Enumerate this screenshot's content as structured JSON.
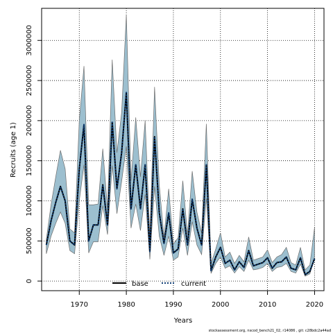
{
  "chart_data": {
    "type": "line",
    "xlabel": "Years",
    "ylabel": "Recruits (age 1)",
    "xlim": [
      1962,
      2022
    ],
    "ylim": [
      -120000,
      3400000
    ],
    "xticks": [
      1970,
      1980,
      1990,
      2000,
      2010,
      2020
    ],
    "yticks": [
      0,
      500000,
      1000000,
      1500000,
      2000000,
      2500000,
      3000000
    ],
    "grid": true,
    "legend_position": "bottom-center",
    "band_color": "#9cbfcf",
    "band_edge_color": "#6c6c6c",
    "x": [
      1963,
      1964,
      1965,
      1966,
      1967,
      1968,
      1969,
      1970,
      1971,
      1972,
      1973,
      1974,
      1975,
      1976,
      1977,
      1978,
      1979,
      1980,
      1981,
      1982,
      1983,
      1984,
      1985,
      1986,
      1987,
      1988,
      1989,
      1990,
      1991,
      1992,
      1993,
      1994,
      1995,
      1996,
      1997,
      1998,
      1999,
      2000,
      2001,
      2002,
      2003,
      2004,
      2005,
      2006,
      2007,
      2008,
      2009,
      2010,
      2011,
      2012,
      2013,
      2014,
      2015,
      2016,
      2017,
      2018,
      2019,
      2020
    ],
    "upper": [
      520000,
      950000,
      1300000,
      1630000,
      1400000,
      650000,
      600000,
      2000000,
      2680000,
      950000,
      950000,
      960000,
      1650000,
      900000,
      2760000,
      1600000,
      2100000,
      3320000,
      1250000,
      2040000,
      1300000,
      2000000,
      550000,
      2420000,
      1200000,
      550000,
      1150000,
      460000,
      540000,
      1250000,
      580000,
      1370000,
      860000,
      600000,
      1960000,
      220000,
      400000,
      600000,
      300000,
      360000,
      220000,
      320000,
      240000,
      550000,
      260000,
      280000,
      300000,
      390000,
      230000,
      300000,
      330000,
      420000,
      230000,
      200000,
      420000,
      140000,
      200000,
      670000
    ],
    "lower": [
      340000,
      560000,
      720000,
      860000,
      720000,
      380000,
      340000,
      1000000,
      1450000,
      350000,
      490000,
      490000,
      940000,
      580000,
      1440000,
      840000,
      1240000,
      1680000,
      660000,
      960000,
      630000,
      1080000,
      270000,
      1180000,
      560000,
      320000,
      560000,
      260000,
      300000,
      660000,
      320000,
      740000,
      450000,
      330000,
      1030000,
      95000,
      220000,
      300000,
      160000,
      190000,
      100000,
      180000,
      120000,
      260000,
      140000,
      150000,
      170000,
      220000,
      120000,
      170000,
      180000,
      220000,
      120000,
      100000,
      210000,
      60000,
      90000,
      300000
    ],
    "series": [
      {
        "name": "base",
        "style": "solid",
        "values": [
          450000,
          750000,
          980000,
          1180000,
          1000000,
          500000,
          450000,
          1400000,
          1950000,
          500000,
          700000,
          700000,
          1200000,
          700000,
          1980000,
          1150000,
          1600000,
          2350000,
          900000,
          1450000,
          900000,
          1450000,
          370000,
          1800000,
          850000,
          470000,
          850000,
          350000,
          400000,
          900000,
          450000,
          1020000,
          660000,
          450000,
          1450000,
          130000,
          300000,
          420000,
          220000,
          260000,
          140000,
          240000,
          170000,
          380000,
          190000,
          210000,
          230000,
          290000,
          160000,
          230000,
          240000,
          300000,
          160000,
          140000,
          290000,
          80000,
          120000,
          280000
        ]
      },
      {
        "name": "current",
        "style": "dotted",
        "values": [
          450000,
          750000,
          980000,
          1180000,
          1000000,
          500000,
          450000,
          1400000,
          1950000,
          500000,
          700000,
          700000,
          1200000,
          700000,
          1980000,
          1150000,
          1600000,
          2350000,
          900000,
          1450000,
          900000,
          1450000,
          370000,
          1800000,
          850000,
          470000,
          850000,
          350000,
          400000,
          900000,
          450000,
          1020000,
          660000,
          450000,
          1450000,
          130000,
          300000,
          420000,
          220000,
          260000,
          140000,
          240000,
          170000,
          380000,
          190000,
          210000,
          230000,
          290000,
          160000,
          230000,
          240000,
          300000,
          160000,
          140000,
          290000,
          80000,
          120000,
          280000
        ]
      }
    ],
    "footer": "stockassessment.org, nscod_bench21_02, r14086 , git: c28bdc2a44ad"
  }
}
